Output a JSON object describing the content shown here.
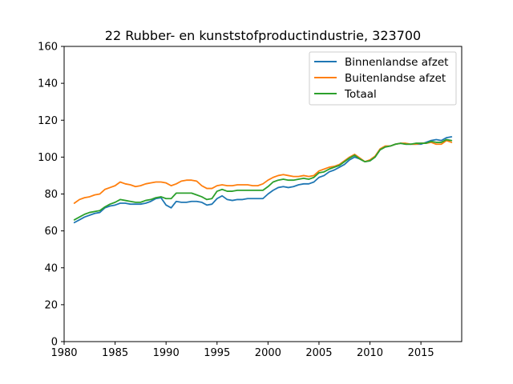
{
  "chart_data": {
    "type": "line",
    "title": "22 Rubber- en kunststofproductindustrie, 323700",
    "xlabel": "",
    "ylabel": "",
    "xlim": [
      1980,
      2019
    ],
    "ylim": [
      0,
      160
    ],
    "xticks": [
      1980,
      1985,
      1990,
      1995,
      2000,
      2005,
      2010,
      2015
    ],
    "yticks": [
      0,
      20,
      40,
      60,
      80,
      100,
      120,
      140,
      160
    ],
    "grid": false,
    "legend_position": "top-right",
    "series": [
      {
        "name": "Binnenlandse afzet",
        "color": "#1f77b4",
        "x": [
          1981.0,
          1981.5,
          1982.0,
          1982.5,
          1983.0,
          1983.5,
          1984.0,
          1984.5,
          1985.0,
          1985.5,
          1986.0,
          1986.5,
          1987.0,
          1987.5,
          1988.0,
          1988.5,
          1989.0,
          1989.5,
          1990.0,
          1990.5,
          1991.0,
          1991.5,
          1992.0,
          1992.5,
          1993.0,
          1993.5,
          1994.0,
          1994.5,
          1995.0,
          1995.5,
          1996.0,
          1996.5,
          1997.0,
          1997.5,
          1998.0,
          1998.5,
          1999.0,
          1999.5,
          2000.0,
          2000.5,
          2001.0,
          2001.5,
          2002.0,
          2002.5,
          2003.0,
          2003.5,
          2004.0,
          2004.5,
          2005.0,
          2005.5,
          2006.0,
          2006.5,
          2007.0,
          2007.5,
          2008.0,
          2008.5,
          2009.0,
          2009.5,
          2010.0,
          2010.5,
          2011.0,
          2011.5,
          2012.0,
          2012.5,
          2013.0,
          2013.5,
          2014.0,
          2014.5,
          2015.0,
          2015.5,
          2016.0,
          2016.5,
          2017.0,
          2017.5,
          2018.0
        ],
        "values": [
          64.5,
          66,
          67.5,
          68.5,
          69.5,
          70,
          72.5,
          73.5,
          74,
          75,
          75,
          74.5,
          74.5,
          74.5,
          75,
          76,
          77.5,
          78,
          74,
          72.5,
          76,
          75.5,
          75.5,
          76,
          76,
          75.5,
          74,
          74.5,
          77.5,
          79,
          77,
          76.5,
          77,
          77,
          77.5,
          77.5,
          77.5,
          77.5,
          80,
          82,
          83.5,
          84,
          83.5,
          84,
          85,
          85.5,
          85.5,
          86.5,
          89,
          90,
          92,
          93,
          94.5,
          96,
          98.5,
          100,
          99,
          97.5,
          98,
          100,
          104,
          105.5,
          106,
          107,
          107.5,
          107,
          107,
          107,
          107,
          108,
          109,
          109.5,
          109,
          110.5,
          111
        ]
      },
      {
        "name": "Buitenlandse afzet",
        "color": "#ff7f0e",
        "x": [
          1981.0,
          1981.5,
          1982.0,
          1982.5,
          1983.0,
          1983.5,
          1984.0,
          1984.5,
          1985.0,
          1985.5,
          1986.0,
          1986.5,
          1987.0,
          1987.5,
          1988.0,
          1988.5,
          1989.0,
          1989.5,
          1990.0,
          1990.5,
          1991.0,
          1991.5,
          1992.0,
          1992.5,
          1993.0,
          1993.5,
          1994.0,
          1994.5,
          1995.0,
          1995.5,
          1996.0,
          1996.5,
          1997.0,
          1997.5,
          1998.0,
          1998.5,
          1999.0,
          1999.5,
          2000.0,
          2000.5,
          2001.0,
          2001.5,
          2002.0,
          2002.5,
          2003.0,
          2003.5,
          2004.0,
          2004.5,
          2005.0,
          2005.5,
          2006.0,
          2006.5,
          2007.0,
          2007.5,
          2008.0,
          2008.5,
          2009.0,
          2009.5,
          2010.0,
          2010.5,
          2011.0,
          2011.5,
          2012.0,
          2012.5,
          2013.0,
          2013.5,
          2014.0,
          2014.5,
          2015.0,
          2015.5,
          2016.0,
          2016.5,
          2017.0,
          2017.5,
          2018.0
        ],
        "values": [
          75,
          77,
          78,
          78.5,
          79.5,
          80,
          82.5,
          83.5,
          84.5,
          86.5,
          85.5,
          85,
          84,
          84.5,
          85.5,
          86,
          86.5,
          86.5,
          86,
          84.5,
          85.5,
          87,
          87.5,
          87.5,
          87,
          84.5,
          83,
          83,
          84.5,
          85,
          84.5,
          84.5,
          85,
          85,
          85,
          84.5,
          84.5,
          85.5,
          87.5,
          89,
          90,
          90.5,
          90,
          89.5,
          89.5,
          90,
          89.5,
          90,
          92.5,
          93.5,
          94.5,
          95,
          96,
          98,
          100,
          101.5,
          99.5,
          97.5,
          98.5,
          100.5,
          104.5,
          106,
          106,
          107,
          107.5,
          107.5,
          107,
          107,
          107.5,
          107.5,
          108,
          107,
          107,
          109,
          108
        ]
      },
      {
        "name": "Totaal",
        "color": "#2ca02c",
        "x": [
          1981.0,
          1981.5,
          1982.0,
          1982.5,
          1983.0,
          1983.5,
          1984.0,
          1984.5,
          1985.0,
          1985.5,
          1986.0,
          1986.5,
          1987.0,
          1987.5,
          1988.0,
          1988.5,
          1989.0,
          1989.5,
          1990.0,
          1990.5,
          1991.0,
          1991.5,
          1992.0,
          1992.5,
          1993.0,
          1993.5,
          1994.0,
          1994.5,
          1995.0,
          1995.5,
          1996.0,
          1996.5,
          1997.0,
          1997.5,
          1998.0,
          1998.5,
          1999.0,
          1999.5,
          2000.0,
          2000.5,
          2001.0,
          2001.5,
          2002.0,
          2002.5,
          2003.0,
          2003.5,
          2004.0,
          2004.5,
          2005.0,
          2005.5,
          2006.0,
          2006.5,
          2007.0,
          2007.5,
          2008.0,
          2008.5,
          2009.0,
          2009.5,
          2010.0,
          2010.5,
          2011.0,
          2011.5,
          2012.0,
          2012.5,
          2013.0,
          2013.5,
          2014.0,
          2014.5,
          2015.0,
          2015.5,
          2016.0,
          2016.5,
          2017.0,
          2017.5,
          2018.0
        ],
        "values": [
          66,
          67.5,
          69,
          70,
          70.5,
          71,
          73,
          74.5,
          75.5,
          77,
          76.5,
          76,
          75.5,
          75.5,
          76.5,
          77,
          78,
          78.5,
          77.5,
          77.5,
          80.5,
          80.5,
          80.5,
          80.5,
          79.5,
          78.5,
          77,
          77.5,
          81.5,
          82.5,
          81.5,
          81.5,
          82,
          82,
          82,
          82,
          82,
          82,
          84,
          86.5,
          87.5,
          88,
          87.5,
          87.5,
          88,
          88.5,
          88,
          89,
          91.5,
          92,
          93.5,
          94.5,
          95.5,
          97.5,
          99.5,
          101,
          99,
          97.5,
          98,
          100,
          104,
          105.5,
          106,
          107,
          107.5,
          107,
          107,
          107.5,
          107.5,
          107.5,
          108.5,
          108,
          108,
          109.5,
          109
        ]
      }
    ]
  }
}
